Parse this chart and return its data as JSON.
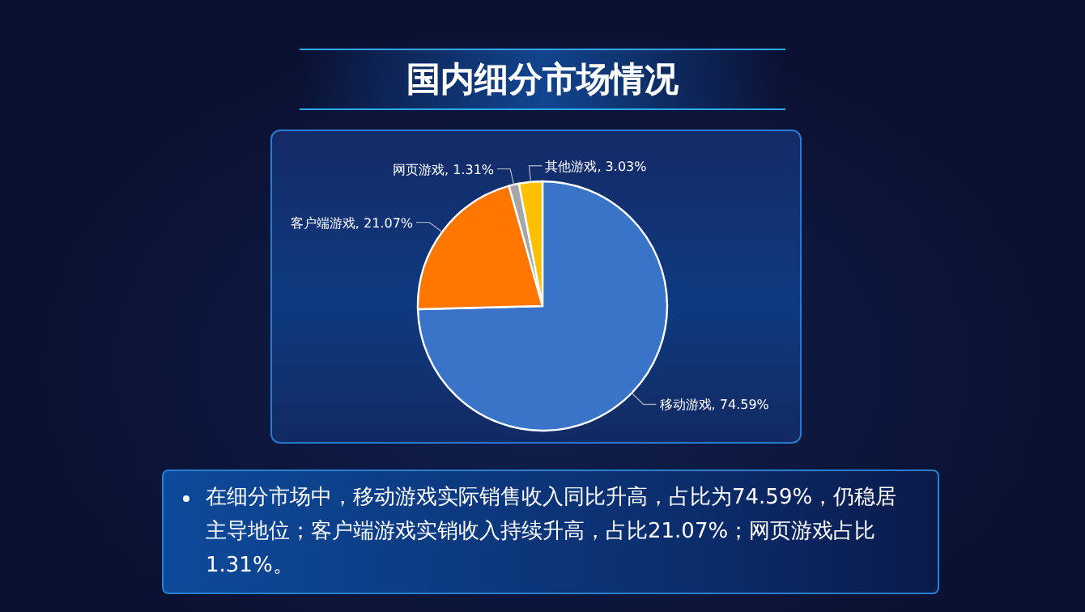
{
  "chart_data": {
    "type": "pie",
    "title": "国内细分市场情况",
    "categories": [
      "移动游戏",
      "客户端游戏",
      "网页游戏",
      "其他游戏"
    ],
    "values": [
      74.59,
      21.07,
      1.31,
      3.03
    ],
    "value_labels": [
      "74.59%",
      "21.07%",
      "1.31%",
      "3.03%"
    ],
    "colors": [
      "#3a74c9",
      "#ff7700",
      "#a6a6a6",
      "#ffc000"
    ],
    "legend": false,
    "annotations": [
      "在细分市场中，移动游戏实际销售收入同比升高，占比为74.59%，仍稳居主导地位；客户端游戏实销收入持续升高，占比21.07%；网页游戏占比1.31%。"
    ]
  }
}
